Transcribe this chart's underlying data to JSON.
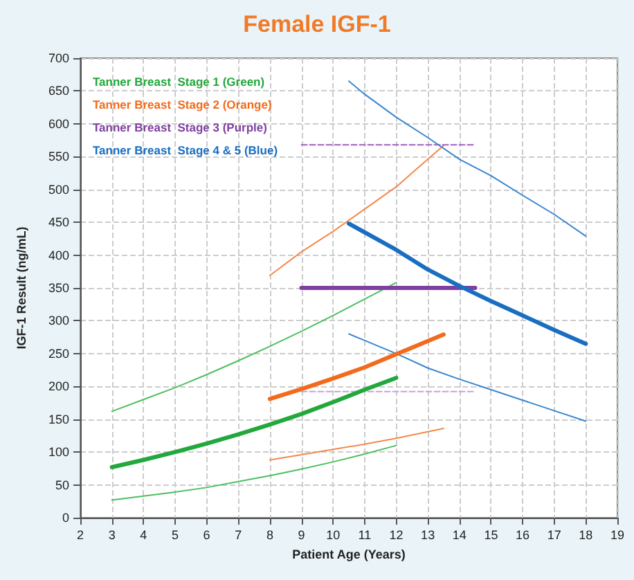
{
  "chart_data": {
    "type": "line",
    "title": "Female IGF-1",
    "xlabel": "Patient Age (Years)",
    "ylabel": "IGF-1 Result (ng/mL)",
    "xlim": [
      2,
      19
    ],
    "xticks": [
      2,
      3,
      4,
      5,
      6,
      7,
      8,
      9,
      10,
      11,
      12,
      13,
      14,
      15,
      16,
      17,
      18,
      19
    ],
    "ylim": [
      0,
      700
    ],
    "yticks": [
      0,
      50,
      100,
      150,
      200,
      250,
      300,
      350,
      400,
      450,
      500,
      550,
      600,
      650,
      700
    ],
    "grid": true,
    "legend": "top left",
    "marker": "none",
    "line_style": "solid",
    "series": [
      {
        "name": "Tanner Breast  Stage 1 (Green)",
        "color": "#22a83c",
        "x": [
          3,
          4,
          5,
          6,
          7,
          8,
          9,
          10,
          11,
          12
        ],
        "values": [
          77,
          88,
          100,
          113,
          127,
          142,
          158,
          176,
          195,
          213
        ]
      },
      {
        "name": "Tanner Breast  Stage 2 (Orange)",
        "color": "#f26b1d",
        "x": [
          8,
          9,
          10,
          11,
          12,
          13,
          13.5
        ],
        "values": [
          181,
          196,
          212,
          229,
          249,
          269,
          279
        ]
      },
      {
        "name": "Tanner Breast  Stage 3 (Purple)",
        "color": "#8040a0",
        "x": [
          9,
          14.5
        ],
        "values": [
          350,
          350
        ]
      },
      {
        "name": "Tanner Breast  Stage 4 & 5 (Blue)",
        "color": "#1a6ec2",
        "x": [
          10.5,
          12,
          13,
          14,
          15,
          16,
          17,
          18
        ],
        "values": [
          448,
          408,
          378,
          353,
          330,
          308,
          286,
          265
        ]
      },
      {
        "color": "#4cbf60",
        "x": [
          3,
          4,
          5,
          6,
          7,
          8,
          9,
          10,
          11,
          12
        ],
        "values": [
          162,
          180,
          198,
          218,
          239,
          261,
          284,
          308,
          333,
          358
        ]
      },
      {
        "color": "#4cbf60",
        "x": [
          3,
          4,
          5,
          6,
          7,
          8,
          9,
          10,
          11,
          12
        ],
        "values": [
          27,
          33,
          39,
          46,
          55,
          64,
          74,
          85,
          97,
          110
        ]
      },
      {
        "color": "#f5894a",
        "x": [
          8,
          9,
          10,
          11,
          12,
          13,
          13.5
        ],
        "values": [
          369,
          405,
          436,
          470,
          504,
          546,
          567
        ]
      },
      {
        "color": "#f5894a",
        "x": [
          8,
          9,
          10,
          11,
          12,
          13,
          13.5
        ],
        "values": [
          88,
          96,
          104,
          112,
          121,
          131,
          136
        ]
      },
      {
        "color": "#a060c0",
        "x": [
          9,
          14.5
        ],
        "values": [
          568,
          568
        ],
        "line_style": "dashed"
      },
      {
        "color": "#c8a0e0",
        "x": [
          9,
          14.5
        ],
        "values": [
          192,
          192
        ],
        "line_style": "dashed"
      },
      {
        "color": "#3a86d0",
        "x": [
          10.5,
          11,
          12,
          13,
          14,
          15,
          16,
          17,
          18
        ],
        "values": [
          665,
          645,
          610,
          579,
          546,
          521,
          491,
          462,
          429
        ]
      },
      {
        "color": "#3a86d0",
        "x": [
          10.5,
          11,
          12,
          13,
          14,
          15,
          16,
          17,
          18
        ],
        "values": [
          280,
          270,
          250,
          228,
          211,
          195,
          179,
          163,
          147
        ]
      }
    ]
  }
}
